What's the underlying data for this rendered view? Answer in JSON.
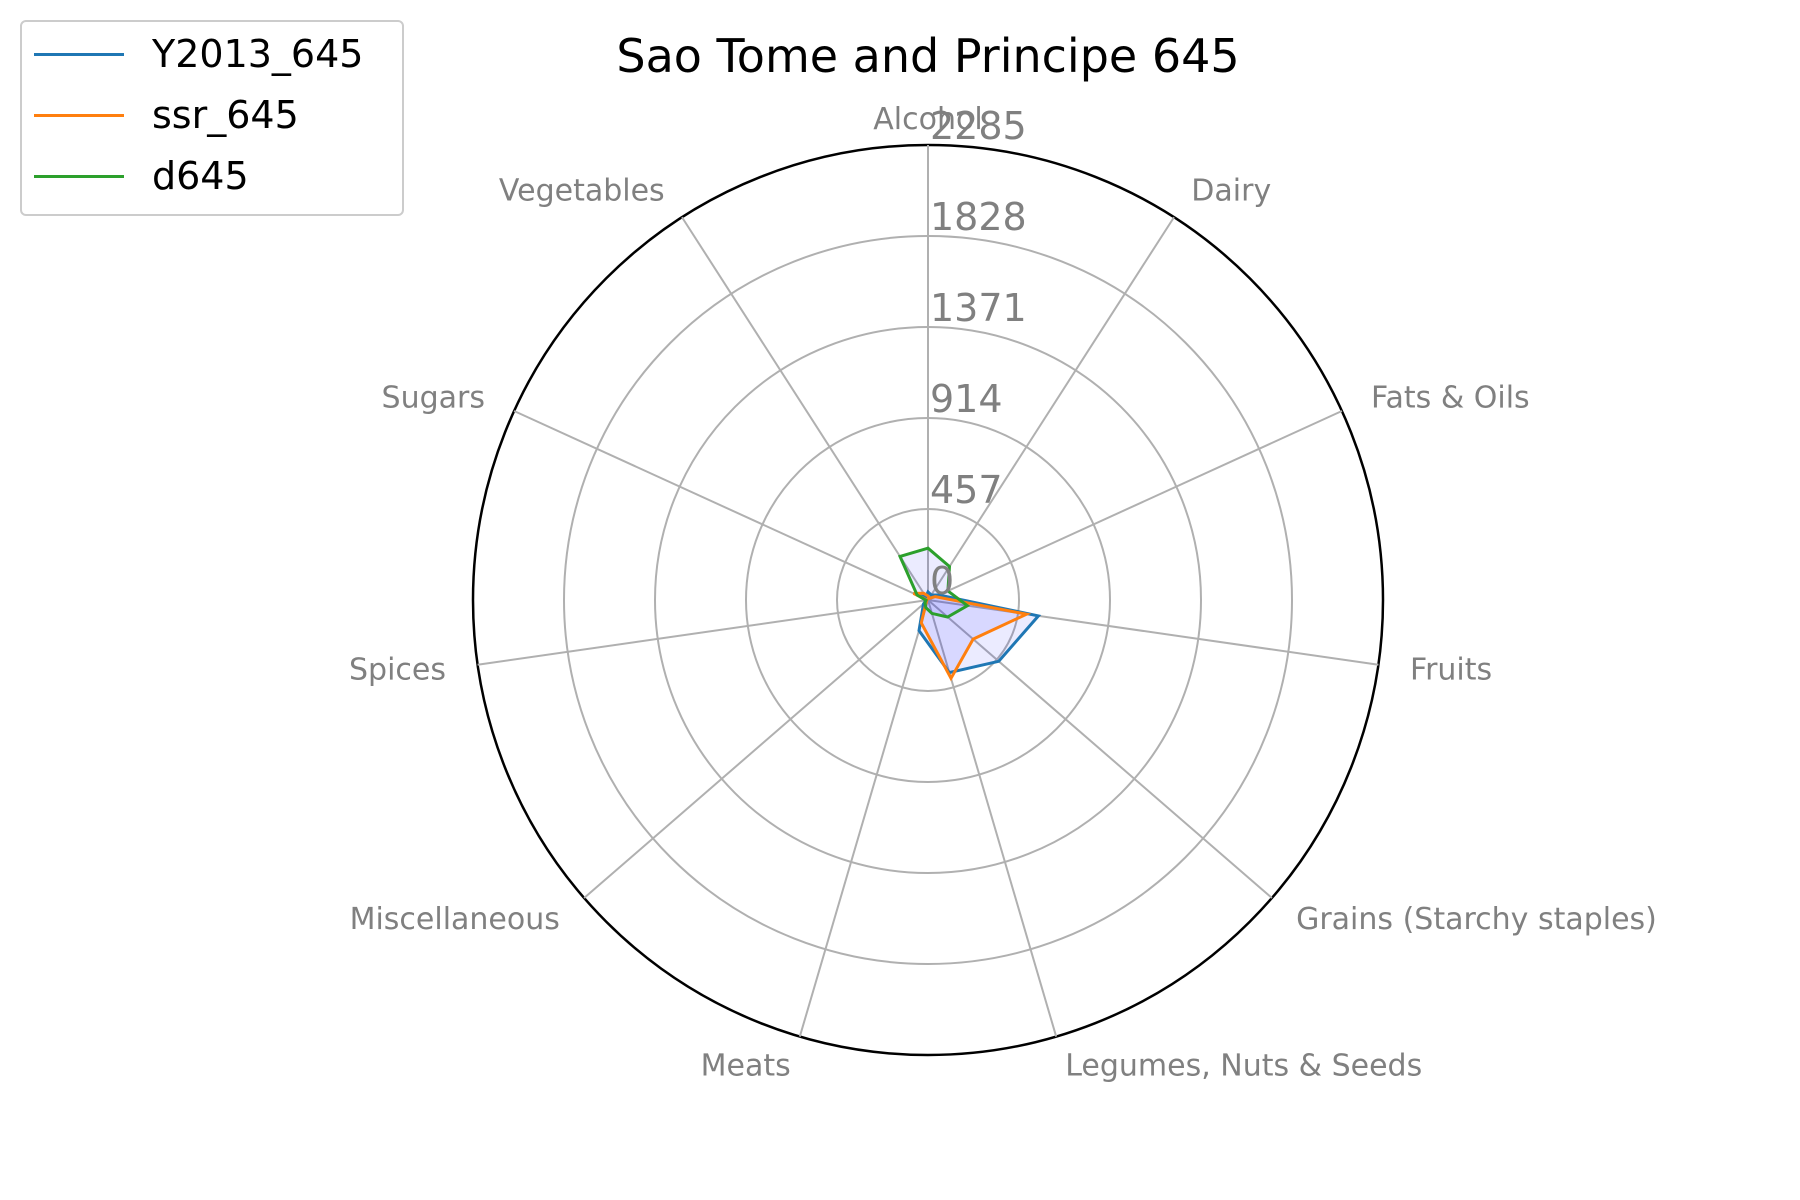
{
  "chart_data": {
    "type": "radar",
    "title": "Sao Tome and Principe 645",
    "categories": [
      "Alcohol",
      "Dairy",
      "Fats & Oils",
      "Fruits",
      "Grains (Starchy staples)",
      "Legumes, Nuts & Seeds",
      "Meats",
      "Miscellaneous",
      "Spices",
      "Sugars",
      "Vegetables"
    ],
    "radial_ticks": [
      0,
      457,
      914,
      1371,
      1828,
      2285
    ],
    "rlim": [
      0,
      2285
    ],
    "series": [
      {
        "name": "Y2013_645",
        "color": "#1f77b4",
        "values": [
          40,
          30,
          60,
          560,
          470,
          380,
          160,
          30,
          10,
          50,
          20
        ]
      },
      {
        "name": "ssr_645",
        "color": "#ff7f0e",
        "values": [
          20,
          10,
          40,
          500,
          300,
          410,
          120,
          10,
          5,
          80,
          40
        ]
      },
      {
        "name": "d645",
        "color": "#2ca02c",
        "values": [
          260,
          200,
          110,
          200,
          130,
          70,
          40,
          20,
          10,
          60,
          260
        ]
      }
    ],
    "fill_color": "#0000ff",
    "grid": true,
    "legend_position": "upper-left"
  }
}
